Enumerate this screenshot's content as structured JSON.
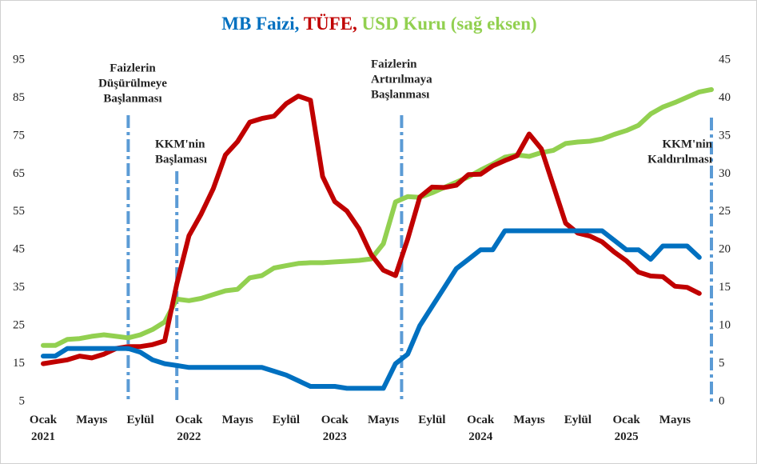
{
  "chart_data": {
    "type": "line",
    "title_separator": ",",
    "categories": [
      "Ocak 2021",
      null,
      null,
      null,
      "Mayıs",
      null,
      null,
      null,
      "Eylül",
      null,
      null,
      null,
      "Ocak 2022",
      null,
      null,
      null,
      "Mayıs",
      null,
      null,
      null,
      "Eylül",
      null,
      null,
      null,
      "Ocak 2023",
      null,
      null,
      null,
      "Mayıs",
      null,
      null,
      null,
      "Eylül",
      null,
      null,
      null,
      "Ocak 2024",
      null,
      null,
      null,
      "Mayıs",
      null,
      null,
      null,
      "Eylül",
      null,
      null,
      null,
      "Ocak 2025",
      null,
      null,
      null,
      "Mayıs",
      null,
      null,
      null
    ],
    "series": [
      {
        "name": "MB Faizi",
        "color": "#0070c0",
        "values": [
          17,
          17,
          19,
          19,
          19,
          19,
          19,
          19,
          18,
          16,
          15,
          14.5,
          14,
          14,
          14,
          14,
          14,
          14,
          14,
          13,
          12,
          10.5,
          9,
          9,
          9,
          8.5,
          8.5,
          8.5,
          8.5,
          15,
          17.5,
          25,
          30,
          35,
          40,
          42.5,
          45,
          45,
          50,
          50,
          50,
          50,
          50,
          50,
          50,
          50,
          50,
          47.5,
          45,
          45,
          42.5,
          46,
          46,
          46,
          43,
          null
        ]
      },
      {
        "name": "TÜFE",
        "color": "#c00000",
        "values": [
          15,
          15.5,
          16,
          17,
          16.5,
          17.5,
          19,
          19.5,
          19.5,
          20,
          21,
          36,
          48.7,
          54.4,
          61.1,
          70,
          73.5,
          78.6,
          79.6,
          80.2,
          83.5,
          85.5,
          84.4,
          64.3,
          57.7,
          55.2,
          50.5,
          43.7,
          39.6,
          38.2,
          47.8,
          58.9,
          61.5,
          61.4,
          62,
          64.8,
          64.9,
          67.1,
          68.5,
          69.8,
          75.5,
          71.6,
          61.8,
          52,
          49.4,
          48.6,
          47.1,
          44.4,
          42.1,
          39.1,
          38.1,
          37.9,
          35.4,
          35.1,
          33.5,
          null
        ]
      },
      {
        "name": "USD Kuru (sağ eksen)",
        "color": "#92d050",
        "axis": "y2",
        "values": [
          7.4,
          7.4,
          8.2,
          8.3,
          8.6,
          8.8,
          8.6,
          8.4,
          8.8,
          9.5,
          10.5,
          13.5,
          13.3,
          13.6,
          14.1,
          14.6,
          14.8,
          16.3,
          16.6,
          17.6,
          17.9,
          18.2,
          18.3,
          18.3,
          18.4,
          18.5,
          18.6,
          18.8,
          20.8,
          26.3,
          27,
          26.9,
          27.5,
          28.2,
          28.9,
          29.6,
          30.5,
          31.3,
          32.2,
          32.5,
          32.3,
          32.8,
          33.1,
          34,
          34.2,
          34.3,
          34.6,
          35.2,
          35.7,
          36.4,
          37.9,
          38.8,
          39.4,
          40.1,
          40.8,
          41.1
        ]
      }
    ],
    "ylim": [
      5,
      95
    ],
    "yticks": [
      5,
      15,
      25,
      35,
      45,
      55,
      65,
      75,
      85,
      95
    ],
    "y2lim": [
      0,
      45
    ],
    "y2ticks": [
      0,
      5,
      10,
      15,
      20,
      25,
      30,
      35,
      40,
      45
    ],
    "annotations": [
      {
        "x": 7,
        "lines": [
          "Faizlerin",
          "Düşürülmeye",
          "Başlanması"
        ]
      },
      {
        "x": 11,
        "lines": [
          "KKM'nin",
          "Başlaması"
        ]
      },
      {
        "x": 29.5,
        "lines": [
          "Faizlerin",
          "Artırılmaya",
          "Başlanması"
        ]
      },
      {
        "x": 55,
        "lines": [
          "KKM'nin",
          "Kaldırılması"
        ]
      }
    ]
  }
}
